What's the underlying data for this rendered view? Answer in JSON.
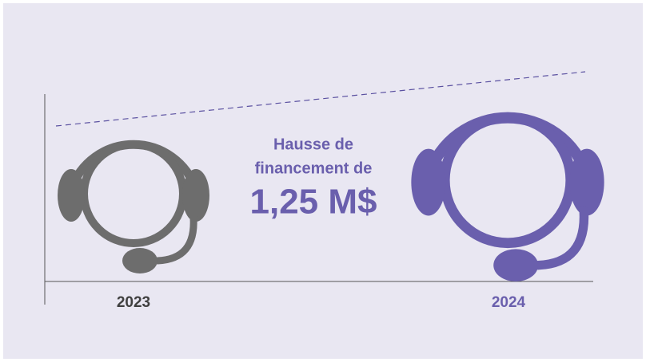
{
  "headline": {
    "line1": "Hausse de",
    "line2": "financement de",
    "amount": "1,25 M$"
  },
  "years": {
    "left": "2023",
    "right": "2024"
  }
}
